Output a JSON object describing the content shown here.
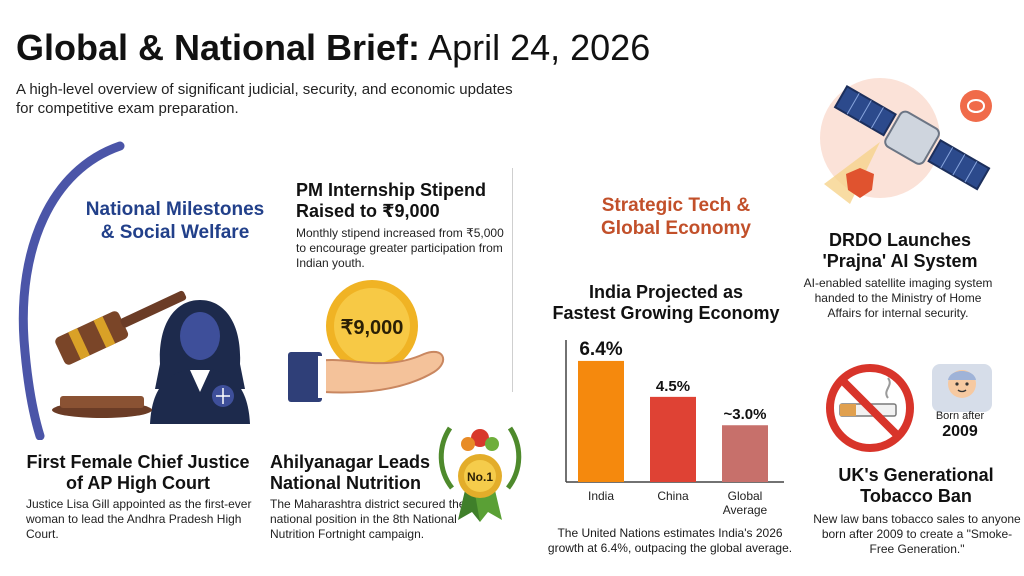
{
  "header": {
    "title_bold": "Global & National Brief:",
    "title_date": "April 24, 2026",
    "subtitle": "A high-level overview of significant judicial, security, and economic updates for competitive exam preparation."
  },
  "national": {
    "heading_line1": "National Milestones",
    "heading_line2": "& Social Welfare",
    "stipend": {
      "title_line1": "PM Internship Stipend",
      "title_line2": "Raised to ₹9,000",
      "body": "Monthly stipend increased from ₹5,000 to encourage greater participation from Indian youth.",
      "coin_label": "₹9,000"
    },
    "chief_justice": {
      "title_line1": "First Female Chief Justice",
      "title_line2": "of AP High Court",
      "body": "Justice Lisa Gill appointed as the first-ever woman to lead the Andhra Pradesh High Court."
    },
    "nutrition": {
      "title_line1": "Ahilyanagar Leads",
      "title_line2": "National Nutrition",
      "body": "The Maharashtra district secured the top national position in the 8th National Nutrition Fortnight campaign.",
      "medal_label": "No.1"
    }
  },
  "tech": {
    "heading_line1": "Strategic Tech &",
    "heading_line2": "Global Economy",
    "economy": {
      "title_line1": "India Projected as",
      "title_line2": "Fastest Growing Economy",
      "footnote": "The United Nations estimates India's 2026 growth at 6.4%, outpacing the global average."
    },
    "drdo": {
      "title_line1": "DRDO Launches",
      "title_line2": "'Prajna' AI System",
      "body": "AI-enabled satellite imaging system handed to the Ministry of Home Affairs for internal security."
    },
    "tobacco": {
      "title_line1": "UK's Generational",
      "title_line2": "Tobacco Ban",
      "body": "New law bans tobacco sales to anyone born after 2009 to create a \"Smoke-Free Generation.\"",
      "born_line1": "Born after",
      "born_line2": "2009"
    }
  },
  "chart_data": {
    "type": "bar",
    "categories": [
      "India",
      "China",
      "Global\nAverage"
    ],
    "values": [
      6.4,
      4.5,
      3.0
    ],
    "value_labels": [
      "6.4%",
      "4.5%",
      "~3.0%"
    ],
    "colors": [
      "#f5890d",
      "#df4234",
      "#c7706b"
    ],
    "ylim": [
      0,
      7.4
    ],
    "grid": false,
    "legend": "none"
  },
  "colors": {
    "national_accent": "#22408a",
    "tech_accent": "#c2502a"
  }
}
